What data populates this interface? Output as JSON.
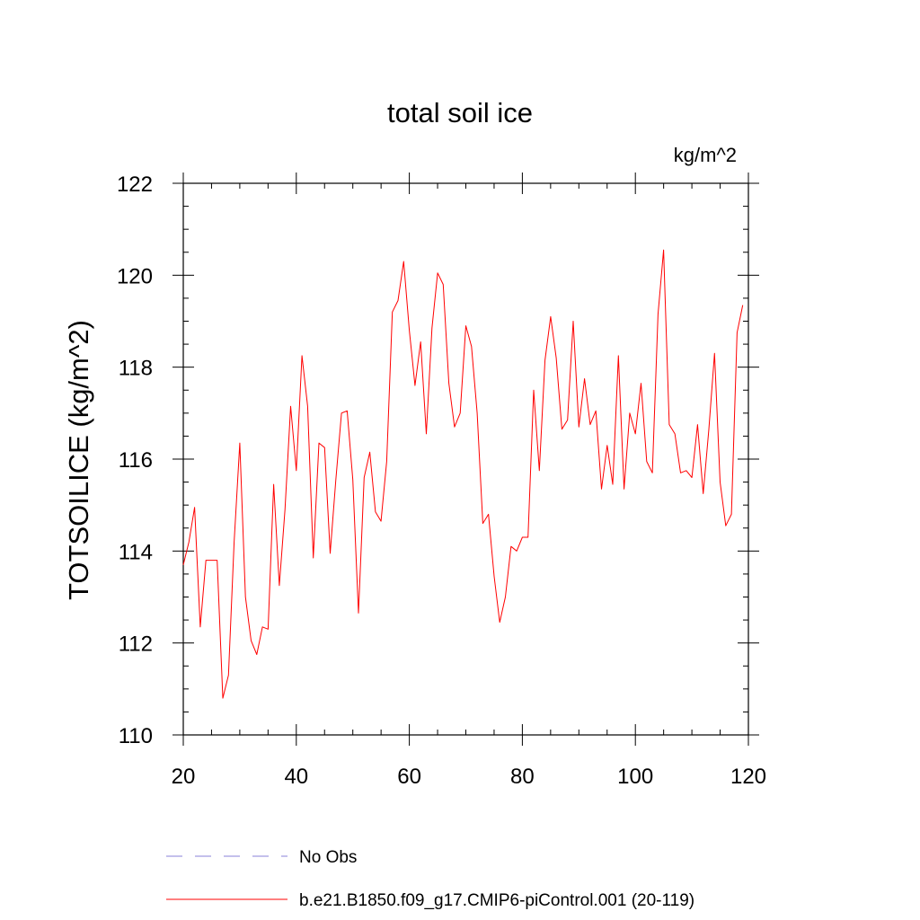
{
  "chart_data": {
    "type": "line",
    "title": "total soil ice",
    "units_label": "kg/m^2",
    "ylabel": "TOTSOILICE  (kg/m^2)",
    "xlabel": "",
    "xlim": [
      20,
      120
    ],
    "ylim": [
      110,
      122
    ],
    "x_ticks": [
      20,
      40,
      60,
      80,
      100,
      120
    ],
    "y_ticks": [
      110,
      112,
      114,
      116,
      118,
      120,
      122
    ],
    "grid": false,
    "legend_position": "bottom",
    "legend": [
      {
        "label": "No Obs",
        "color": "#8a80d8",
        "style": "dashed"
      },
      {
        "label": "b.e21.B1850.f09_g17.CMIP6-piControl.001 (20-119)",
        "color": "#ff0000",
        "style": "solid"
      }
    ],
    "series": [
      {
        "name": "b.e21.B1850.f09_g17.CMIP6-piControl.001 (20-119)",
        "color": "#ff0000",
        "x": [
          20,
          21,
          22,
          23,
          24,
          25,
          26,
          27,
          28,
          29,
          30,
          31,
          32,
          33,
          34,
          35,
          36,
          37,
          38,
          39,
          40,
          41,
          42,
          43,
          44,
          45,
          46,
          47,
          48,
          49,
          50,
          51,
          52,
          53,
          54,
          55,
          56,
          57,
          58,
          59,
          60,
          61,
          62,
          63,
          64,
          65,
          66,
          67,
          68,
          69,
          70,
          71,
          72,
          73,
          74,
          75,
          76,
          77,
          78,
          79,
          80,
          81,
          82,
          83,
          84,
          85,
          86,
          87,
          88,
          89,
          90,
          91,
          92,
          93,
          94,
          95,
          96,
          97,
          98,
          99,
          100,
          101,
          102,
          103,
          104,
          105,
          106,
          107,
          108,
          109,
          110,
          111,
          112,
          113,
          114,
          115,
          116,
          117,
          118,
          119
        ],
        "values": [
          113.7,
          114.2,
          114.95,
          112.35,
          113.8,
          113.8,
          113.8,
          110.8,
          111.3,
          114.2,
          116.35,
          113.0,
          112.05,
          111.75,
          112.35,
          112.3,
          115.45,
          113.25,
          114.9,
          117.15,
          115.75,
          118.25,
          117.15,
          113.85,
          116.35,
          116.25,
          113.95,
          115.55,
          117.0,
          117.05,
          115.55,
          112.65,
          115.6,
          116.15,
          114.85,
          114.65,
          115.95,
          119.2,
          119.45,
          120.3,
          118.8,
          117.6,
          118.55,
          116.55,
          118.85,
          120.05,
          119.8,
          117.65,
          116.7,
          117.0,
          118.9,
          118.45,
          117.0,
          114.6,
          114.8,
          113.45,
          112.45,
          113.0,
          114.1,
          114.0,
          114.3,
          114.3,
          117.5,
          115.75,
          118.15,
          119.1,
          118.2,
          116.65,
          116.85,
          119.0,
          116.7,
          117.75,
          116.75,
          117.05,
          115.35,
          116.3,
          115.45,
          118.25,
          115.35,
          117.0,
          116.55,
          117.65,
          115.95,
          115.7,
          119.15,
          120.55,
          116.75,
          116.55,
          115.7,
          115.75,
          115.6,
          116.75,
          115.25,
          116.65,
          118.3,
          115.5,
          114.55,
          114.8,
          118.75,
          119.35
        ]
      }
    ]
  }
}
